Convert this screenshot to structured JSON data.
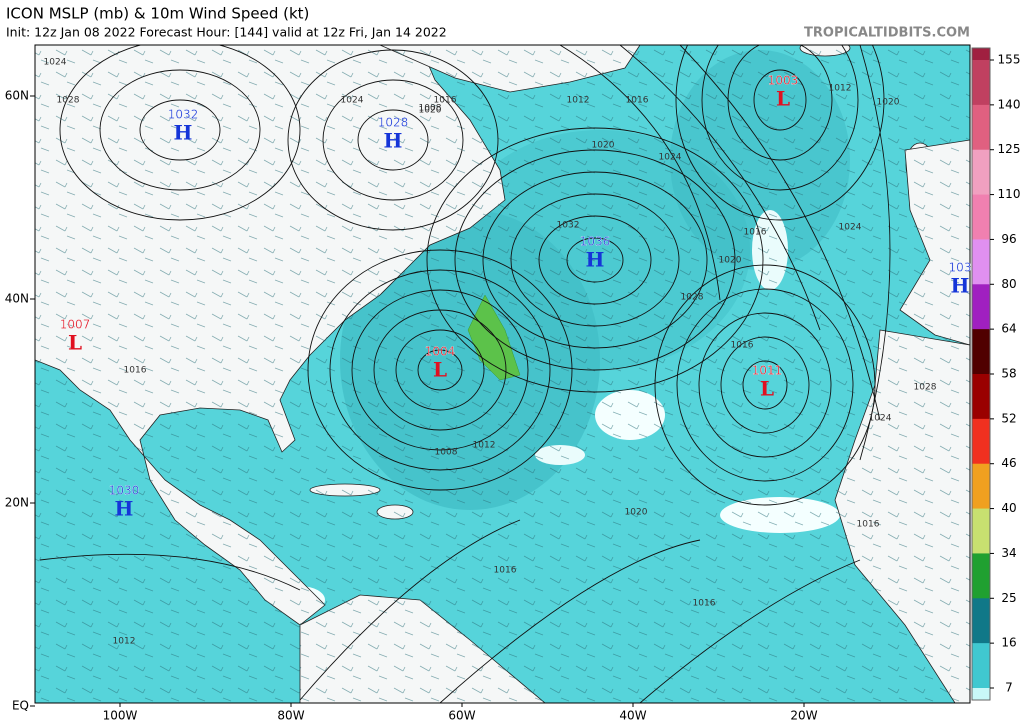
{
  "header": {
    "title": "ICON MSLP (mb) & 10m Wind Speed (kt)",
    "subtitle": "Init: 12z Jan 08 2022   Forecast Hour: [144]   valid at 12z Fri, Jan 14 2022",
    "watermark": "TROPICALTIDBITS.COM"
  },
  "map": {
    "lat_labels": [
      "60N",
      "40N",
      "20N",
      "EQ"
    ],
    "lon_labels": [
      "100W",
      "80W",
      "60W",
      "40W",
      "20W"
    ],
    "pressure_centers": [
      {
        "letter": "H",
        "value": 1032
      },
      {
        "letter": "H",
        "value": 1028
      },
      {
        "letter": "H",
        "value": 1036
      },
      {
        "letter": "L",
        "value": 1003
      },
      {
        "letter": "L",
        "value": 1007
      },
      {
        "letter": "L",
        "value": 1004
      },
      {
        "letter": "L",
        "value": 1011
      },
      {
        "letter": "H",
        "value": 1030
      },
      {
        "letter": "H",
        "value": 103
      }
    ],
    "isobar_labels": [
      1024,
      1028,
      1024,
      1016,
      1020,
      1012,
      1016,
      1024,
      1020,
      1020,
      1032,
      1028,
      1024,
      1016,
      1008,
      1012,
      1020,
      1016,
      1016,
      1012,
      1016,
      1008,
      1012,
      1028,
      1024,
      1016,
      1020,
      1016
    ]
  },
  "colorbar": {
    "ticks": [
      155,
      140,
      125,
      110,
      96,
      80,
      64,
      58,
      52,
      46,
      40,
      34,
      25,
      16,
      7
    ]
  }
}
